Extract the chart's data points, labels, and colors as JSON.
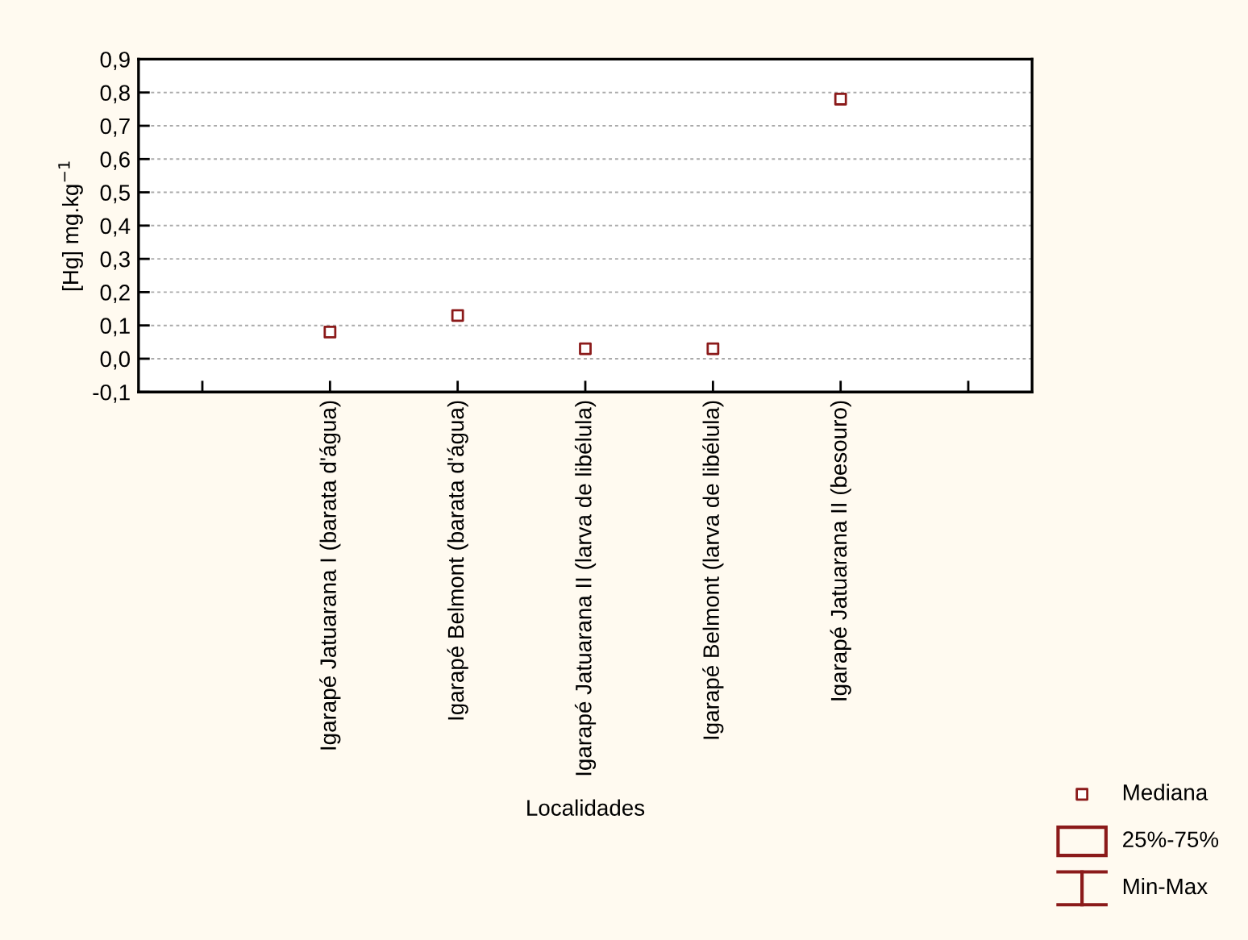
{
  "chart_data": {
    "type": "scatter",
    "categories": [
      null,
      "Igarapé Jatuarana I (barata d'água)",
      "Igarapé Belmont (barata d'água)",
      "Igarapé Jatuarana II (larva de libélula)",
      "Igarapé Belmont (larva de libélula)",
      "Igarapé Jatuarana II (besouro)",
      null
    ],
    "series": [
      {
        "name": "Mediana",
        "color": "#8b1a1a",
        "values": [
          null,
          0.08,
          0.13,
          0.03,
          0.03,
          0.78,
          null
        ]
      }
    ],
    "annotations": [
      "25%-75%",
      "Min-Max"
    ],
    "marker": "square",
    "xlabel": "Localidades",
    "ylabel": "[Hg] mg.kg$^{−1}$",
    "ylim": [
      -0.1,
      0.9
    ],
    "yticks": [
      {
        "value": -0.1,
        "label": "-0,1"
      },
      {
        "value": 0,
        "label": "0,0"
      },
      {
        "value": 0.1,
        "label": "0,1"
      },
      {
        "value": 0.2,
        "label": "0,2"
      },
      {
        "value": 0.3,
        "label": "0,3"
      },
      {
        "value": 0.4,
        "label": "0,4"
      },
      {
        "value": 0.5,
        "label": "0,5"
      },
      {
        "value": 0.6,
        "label": "0,6"
      },
      {
        "value": 0.7,
        "label": "0,7"
      },
      {
        "value": 0.8,
        "label": "0,8"
      },
      {
        "value": 0.9,
        "label": "0,9"
      }
    ],
    "grid": "y",
    "legend": "bottom right"
  }
}
